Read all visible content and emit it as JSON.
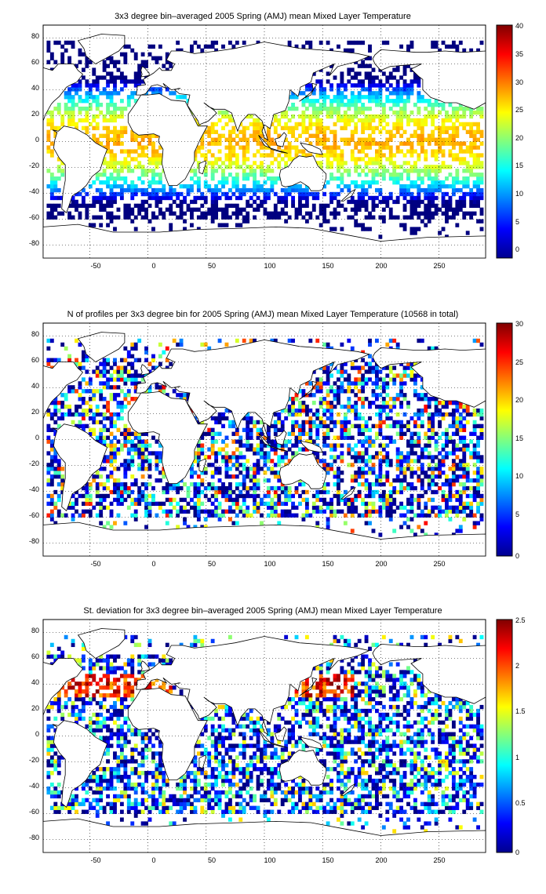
{
  "figure": {
    "panels": [
      {
        "title": "3x3 degree bin–averaged 2005 Spring (AMJ) mean Mixed Layer Temperature",
        "xticks": [
          "-50",
          "0",
          "50",
          "100",
          "150",
          "200",
          "250"
        ],
        "yticks": [
          "80",
          "60",
          "40",
          "20",
          "0",
          "-20",
          "-40",
          "-60",
          "-80"
        ],
        "colorbar_ticks": [
          "40",
          "35",
          "30",
          "25",
          "20",
          "15",
          "10",
          "5",
          "0"
        ]
      },
      {
        "title": "N of profiles per 3x3 degree bin for 2005 Spring (AMJ) mean Mixed Layer Temperature  (10568 in total)",
        "xticks": [
          "-50",
          "0",
          "50",
          "100",
          "150",
          "200",
          "250"
        ],
        "yticks": [
          "80",
          "60",
          "40",
          "20",
          "0",
          "-20",
          "-40",
          "-60",
          "-80"
        ],
        "colorbar_ticks": [
          "30",
          "25",
          "20",
          "15",
          "10",
          "5",
          "0"
        ]
      },
      {
        "title": "St. deviation for 3x3 degree bin–averaged 2005 Spring (AMJ) mean Mixed Layer Temperature",
        "xticks": [
          "-50",
          "0",
          "50",
          "100",
          "150",
          "200",
          "250"
        ],
        "yticks": [
          "80",
          "60",
          "40",
          "20",
          "0",
          "-20",
          "-40",
          "-60",
          "-80"
        ],
        "colorbar_ticks": [
          "2.5",
          "2",
          "1.5",
          "1",
          "0.5",
          "0"
        ]
      }
    ]
  },
  "maps": [
    {
      "variable": "Mixed Layer Temperature",
      "colorscale": "jet",
      "cmin": 0,
      "cmax": 40,
      "lon_range": [
        -90,
        290
      ],
      "lat_range": [
        -90,
        90
      ],
      "bin_deg": 3
    },
    {
      "variable": "N of profiles",
      "colorscale": "jet",
      "cmin": 0,
      "cmax": 30,
      "lon_range": [
        -90,
        290
      ],
      "lat_range": [
        -90,
        90
      ],
      "bin_deg": 3
    },
    {
      "variable": "St. deviation",
      "colorscale": "jet",
      "cmin": 0,
      "cmax": 2.5,
      "lon_range": [
        -90,
        290
      ],
      "lat_range": [
        -90,
        90
      ],
      "bin_deg": 3
    }
  ],
  "colors": {
    "grid": "#000000",
    "coast": "#000000",
    "background": "#ffffff"
  }
}
